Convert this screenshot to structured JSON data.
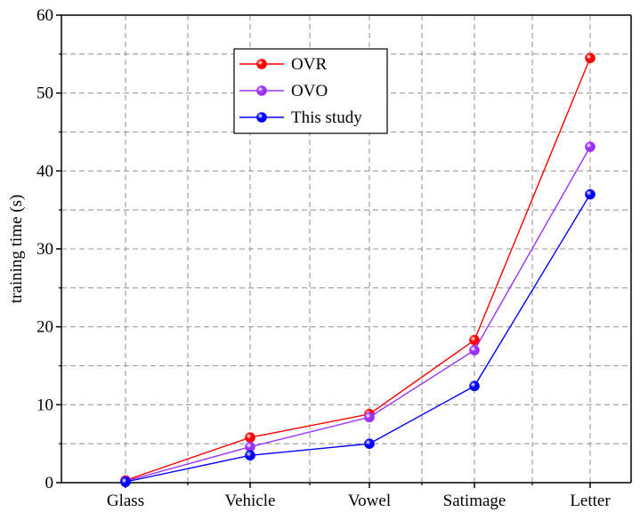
{
  "chart_data": {
    "type": "line",
    "title": "",
    "xlabel": "",
    "ylabel": "training time (s)",
    "categories": [
      "Glass",
      "Vehicle",
      "Vowel",
      "Satimage",
      "Letter"
    ],
    "ylim": [
      0,
      60
    ],
    "yticks": [
      0,
      10,
      20,
      30,
      40,
      50,
      60
    ],
    "grid": true,
    "legend_position": "top-center",
    "series": [
      {
        "name": "OVR",
        "color": "#ff0000",
        "values": [
          0.3,
          5.8,
          8.8,
          18.3,
          54.5
        ]
      },
      {
        "name": "OVO",
        "color": "#9b30ff",
        "values": [
          0.2,
          4.6,
          8.4,
          17.0,
          43.1
        ]
      },
      {
        "name": "This study",
        "color": "#0000ff",
        "values": [
          0.1,
          3.5,
          5.0,
          12.4,
          37.0
        ]
      }
    ]
  }
}
